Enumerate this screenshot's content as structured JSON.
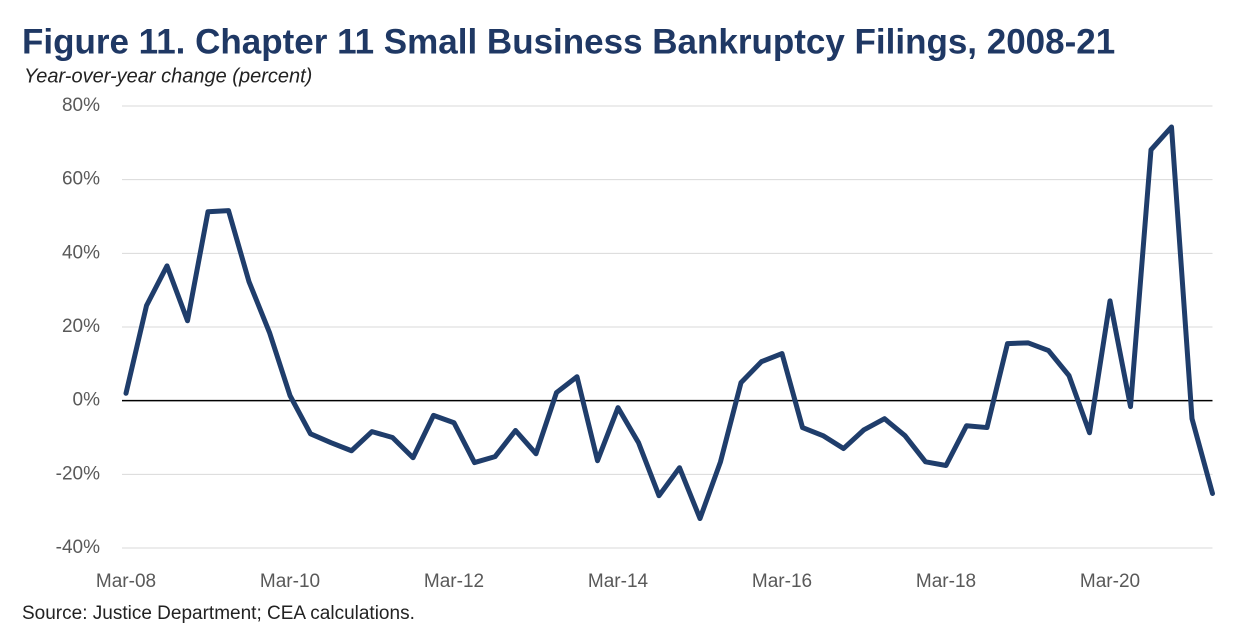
{
  "chart_data": {
    "type": "line",
    "title": "Figure 11. Chapter 11 Small Business Bankruptcy Filings, 2008-21",
    "subtitle": "Year-over-year change (percent)",
    "source": "Source: Justice Department; CEA calculations.",
    "categories": [
      "Mar-08",
      null,
      null,
      null,
      null,
      null,
      null,
      null,
      "Mar-10",
      null,
      null,
      null,
      null,
      null,
      null,
      null,
      "Mar-12",
      null,
      null,
      null,
      null,
      null,
      null,
      null,
      "Mar-14",
      null,
      null,
      null,
      null,
      null,
      null,
      null,
      "Mar-16",
      null,
      null,
      null,
      null,
      null,
      null,
      null,
      "Mar-18",
      null,
      null,
      null,
      null,
      null,
      null,
      null,
      "Mar-20",
      null,
      null,
      null,
      null,
      null
    ],
    "series": [
      {
        "color": "#1f3d6b",
        "values": [
          2,
          25.8,
          36.6,
          21.7,
          51.3,
          51.6,
          32.3,
          18.5,
          1.4,
          -9,
          -11.4,
          -13.6,
          -8.4,
          -10,
          -15.5,
          -4,
          -6,
          -16.8,
          -15.2,
          -8.1,
          -14.4,
          2.2,
          6.5,
          -16.3,
          -1.9,
          -11.4,
          -25.8,
          -18.2,
          -32,
          -16.6,
          4.9,
          10.6,
          12.8,
          -7.3,
          -9.5,
          -13,
          -7.9,
          -4.9,
          -9.5,
          -16.6,
          -17.6,
          -6.8,
          -7.3,
          15.5,
          15.7,
          13.6,
          6.8,
          -8.7,
          27.1,
          -1.6,
          68.1,
          74.3,
          -4.9,
          -25.2
        ]
      }
    ],
    "ylim": [
      -40,
      80
    ],
    "yticks": [
      {
        "value": -40,
        "label": "-40%"
      },
      {
        "value": -20,
        "label": "-20%"
      },
      {
        "value": 0,
        "label": "0%"
      },
      {
        "value": 20,
        "label": "20%"
      },
      {
        "value": 40,
        "label": "40%"
      },
      {
        "value": 60,
        "label": "60%"
      },
      {
        "value": 80,
        "label": "80%"
      }
    ],
    "grid": true
  }
}
